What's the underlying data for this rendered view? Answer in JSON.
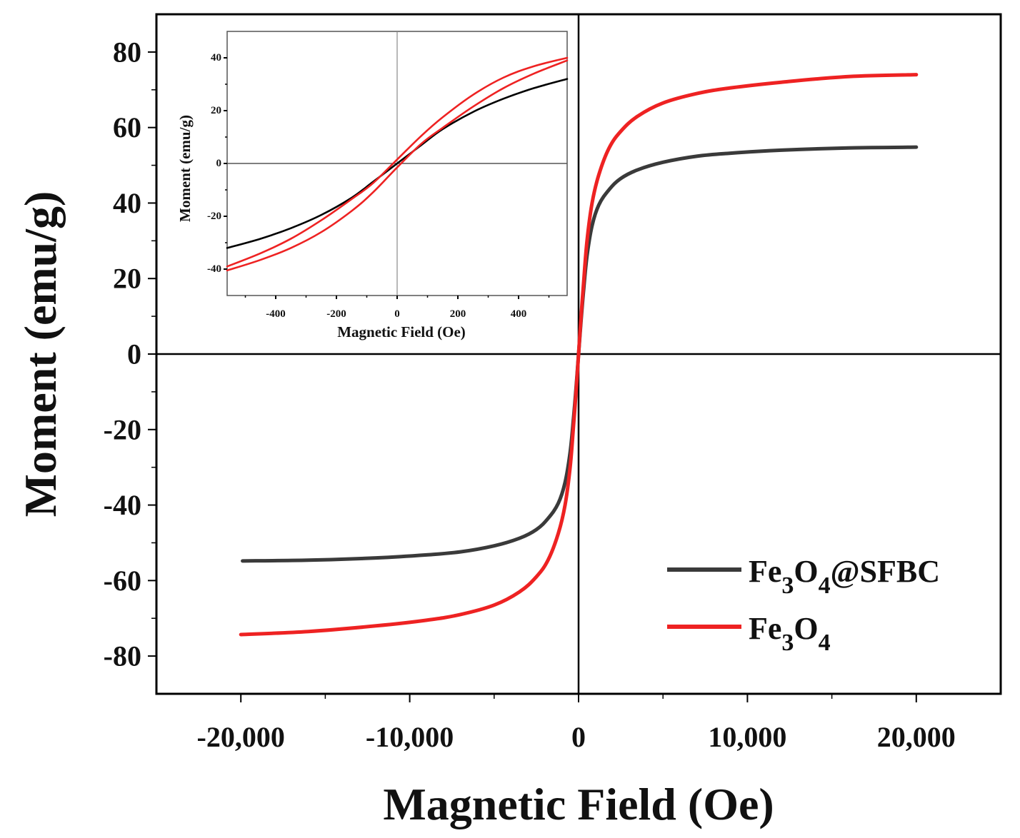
{
  "chart_data": [
    {
      "id": "main",
      "type": "line",
      "title": "",
      "xlabel": "Magnetic Field (Oe)",
      "ylabel": "Moment (emu/g)",
      "xlim": [
        -25000,
        25000
      ],
      "ylim": [
        -90,
        90
      ],
      "xticks": [
        -20000,
        -10000,
        0,
        10000,
        20000
      ],
      "xtick_labels": [
        "-20,000",
        "-10,000",
        "0",
        "10,000",
        "20,000"
      ],
      "yticks": [
        -80,
        -60,
        -40,
        -20,
        0,
        20,
        40,
        60,
        80
      ],
      "ytick_labels": [
        "-80",
        "-60",
        "-40",
        "-20",
        "0",
        "20",
        "40",
        "60",
        "80"
      ],
      "legend_position": "bottom-right",
      "series": [
        {
          "name": "Fe3O4@SFBC",
          "legend_main": "Fe",
          "legend_sub1": "3",
          "legend_mid": "O",
          "legend_sub2": "4",
          "legend_tail": "@SFBC",
          "color": "#3a3a3a",
          "x": [
            -19900,
            -16000,
            -12000,
            -9000,
            -7000,
            -5000,
            -3500,
            -2500,
            -1800,
            -1200,
            -800,
            -500,
            -300,
            -150,
            0,
            150,
            300,
            500,
            800,
            1200,
            1800,
            2500,
            3500,
            5000,
            7000,
            9000,
            12000,
            16000,
            20000
          ],
          "values": [
            -54.8,
            -54.6,
            -54.0,
            -53.2,
            -52.4,
            -50.8,
            -48.8,
            -46.5,
            -43.5,
            -39.5,
            -34.0,
            -26.0,
            -17.0,
            -9.0,
            0,
            9.0,
            17.0,
            26.0,
            34.0,
            39.5,
            43.5,
            46.5,
            48.8,
            50.8,
            52.4,
            53.2,
            54.0,
            54.6,
            54.8
          ]
        },
        {
          "name": "Fe3O4",
          "legend_main": "Fe",
          "legend_sub1": "3",
          "legend_mid": "O",
          "legend_sub2": "4",
          "legend_tail": "",
          "color": "#ee2222",
          "x": [
            -20000,
            -16000,
            -12000,
            -9000,
            -7000,
            -5000,
            -3500,
            -2500,
            -1800,
            -1200,
            -800,
            -500,
            -300,
            -150,
            0,
            150,
            300,
            500,
            800,
            1200,
            1800,
            2500,
            3500,
            5000,
            7000,
            9000,
            12000,
            16000,
            20000
          ],
          "values": [
            -74.3,
            -73.5,
            -72.0,
            -70.5,
            -69.0,
            -66.5,
            -63.0,
            -59.0,
            -54.5,
            -47.5,
            -40.0,
            -30.0,
            -19.0,
            -10.0,
            0,
            10.0,
            19.0,
            30.0,
            40.0,
            47.5,
            54.5,
            59.0,
            63.0,
            66.5,
            69.0,
            70.5,
            72.0,
            73.5,
            74.0
          ]
        }
      ]
    },
    {
      "id": "inset",
      "type": "line",
      "title": "",
      "xlabel": "Magnetic Field (Oe)",
      "ylabel": "Moment (emu/g)",
      "xlim": [
        -560,
        560
      ],
      "ylim": [
        -50,
        50
      ],
      "xticks": [
        -400,
        -200,
        0,
        200,
        400
      ],
      "xtick_labels": [
        "-400",
        "-200",
        "0",
        "200",
        "400"
      ],
      "yticks": [
        -40,
        -20,
        0,
        20,
        40
      ],
      "ytick_labels": [
        "-40",
        "-20",
        "0",
        "20",
        "40"
      ],
      "series": [
        {
          "name": "Fe3O4@SFBC",
          "color": "#000000",
          "x": [
            -560,
            -450,
            -350,
            -250,
            -150,
            -80,
            0,
            80,
            150,
            250,
            350,
            450,
            560
          ],
          "values": [
            -32.0,
            -28.5,
            -24.5,
            -19.5,
            -13.0,
            -7.0,
            0,
            7.0,
            13.0,
            19.5,
            24.5,
            28.5,
            32.0
          ]
        },
        {
          "name": "Fe3O4 (upper branch)",
          "color": "#ee2222",
          "x": [
            -560,
            -450,
            -350,
            -250,
            -150,
            -80,
            0,
            80,
            150,
            250,
            350,
            450,
            560
          ],
          "values": [
            -39.0,
            -34.0,
            -28.5,
            -21.5,
            -13.5,
            -7.5,
            1.5,
            10.5,
            17.5,
            26.0,
            32.5,
            36.8,
            40.0
          ]
        },
        {
          "name": "Fe3O4 (lower branch)",
          "color": "#ee2222",
          "x": [
            -560,
            -450,
            -350,
            -250,
            -150,
            -80,
            0,
            80,
            150,
            250,
            350,
            450,
            560
          ],
          "values": [
            -40.5,
            -36.5,
            -32.0,
            -26.0,
            -18.0,
            -11.0,
            -1.5,
            7.5,
            13.5,
            21.5,
            28.5,
            34.0,
            39.0
          ]
        }
      ]
    }
  ]
}
